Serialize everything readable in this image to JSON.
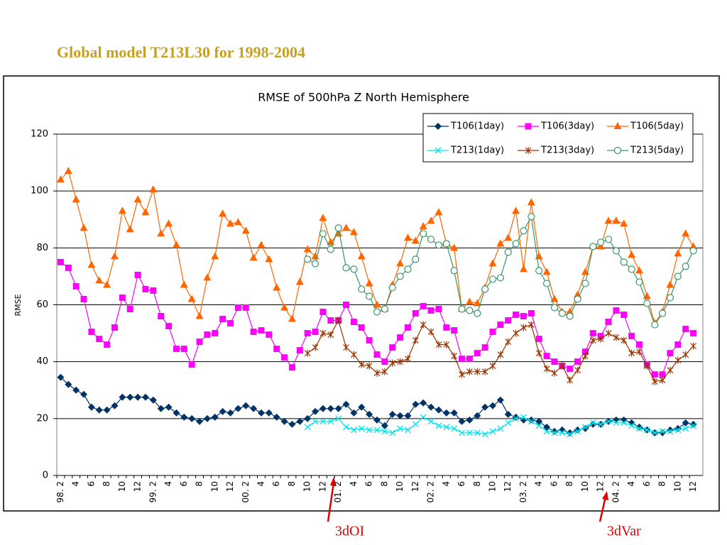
{
  "slide": {
    "title": "Global model T213L30 for 1998-2004"
  },
  "chart_data": {
    "type": "line",
    "title": "RMSE of 500hPa Z North Hemisphere",
    "y_label": "RMSE",
    "categories": [
      "98. 2",
      null,
      "4",
      null,
      "6",
      null,
      "8",
      null,
      "10",
      null,
      "12",
      null,
      "99. 2",
      null,
      "4",
      null,
      "6",
      null,
      "8",
      null,
      "10",
      null,
      "12",
      null,
      "00. 2",
      null,
      "4",
      null,
      "6",
      null,
      "8",
      null,
      "10",
      null,
      "12",
      null,
      "01. 2",
      null,
      "4",
      null,
      "6",
      null,
      "8",
      null,
      "10",
      null,
      "12",
      null,
      "02. 2",
      null,
      "4",
      null,
      "6",
      null,
      "8",
      null,
      "10",
      null,
      "12",
      null,
      "03. 2",
      null,
      "4",
      null,
      "6",
      null,
      "8",
      null,
      "10",
      null,
      "12",
      null,
      "04. 2",
      null,
      "4",
      null,
      "6",
      null,
      "8",
      null,
      "10",
      null,
      "12"
    ],
    "ylim": [
      0,
      120
    ],
    "yticks": [
      0,
      20,
      40,
      60,
      80,
      100,
      120
    ],
    "grid": true,
    "legend": "top-right",
    "series": [
      {
        "name": "T106(1day)",
        "color": "#003366",
        "marker": "diamond",
        "values": [
          34.5,
          32,
          30,
          28.5,
          24,
          23,
          23,
          24.5,
          27.5,
          27.5,
          27.5,
          27.5,
          26.5,
          23.5,
          24,
          22,
          20.5,
          20,
          19,
          20,
          20.5,
          22.5,
          22,
          23.5,
          24.5,
          23.5,
          22,
          22,
          20.5,
          19,
          18,
          19,
          20,
          22.5,
          23.5,
          23.5,
          23.5,
          25,
          22,
          24,
          21.5,
          19.5,
          17.5,
          21.5,
          21,
          21,
          25,
          25.5,
          24,
          23,
          22,
          22,
          19,
          19.5,
          21,
          24,
          24.5,
          26.5,
          21.5,
          20.5,
          19.5,
          19.5,
          19,
          17,
          15.5,
          16,
          15,
          16,
          16.5,
          18,
          18,
          19,
          19.5,
          19.5,
          18.5,
          17,
          16,
          15,
          15,
          16,
          16.5,
          18.5,
          18
        ]
      },
      {
        "name": "T106(3day)",
        "color": "#ff00ff",
        "marker": "square",
        "values": [
          75,
          73,
          66.5,
          62,
          50.5,
          48,
          46,
          52,
          62.5,
          58.5,
          70.5,
          65.5,
          65,
          56,
          52.5,
          44.5,
          44.5,
          39,
          47,
          49.5,
          50,
          55,
          53.5,
          59,
          59,
          50.5,
          51,
          49.5,
          44.5,
          41.5,
          38,
          44,
          50,
          50.5,
          57.5,
          54.5,
          54.5,
          60,
          54,
          52,
          47.5,
          42.5,
          40,
          45,
          48.5,
          52,
          57,
          59.5,
          58,
          58.5,
          52,
          51,
          41,
          41,
          43,
          45,
          50.5,
          53,
          54.5,
          56.5,
          56,
          57,
          48,
          42,
          40,
          38.5,
          37.5,
          40,
          43.5,
          50,
          49,
          54,
          58,
          56.5,
          49,
          46,
          39,
          35.5,
          35.5,
          43,
          46,
          51.5,
          50
        ]
      },
      {
        "name": "T106(5day)",
        "color": "#ff6600",
        "marker": "triangle",
        "values": [
          104,
          107,
          97,
          87,
          74,
          68.5,
          67,
          77,
          93,
          86.5,
          97,
          92.5,
          100.5,
          85,
          88.5,
          81,
          67,
          62,
          56,
          69.5,
          77,
          92,
          88.5,
          89,
          86,
          76.5,
          81,
          76,
          66,
          59,
          55,
          68,
          79.5,
          77,
          90.5,
          82,
          85,
          87,
          85.5,
          77,
          67.5,
          60,
          58.5,
          67,
          74.5,
          83.5,
          82.5,
          87.5,
          89.5,
          92.5,
          81.5,
          80,
          58.5,
          61,
          60.5,
          66,
          74.5,
          81.5,
          83.5,
          93,
          72.5,
          96,
          77,
          71.5,
          62,
          57.5,
          57.5,
          63.5,
          71.5,
          80.5,
          80.5,
          89.5,
          89.5,
          88.5,
          77.5,
          72,
          63,
          53.5,
          57.5,
          67,
          78,
          85,
          80.5
        ]
      },
      {
        "name": "T213(1day)",
        "color": "#00e5ee",
        "marker": "x",
        "values": [
          null,
          null,
          null,
          null,
          null,
          null,
          null,
          null,
          null,
          null,
          null,
          null,
          null,
          null,
          null,
          null,
          null,
          null,
          null,
          null,
          null,
          null,
          null,
          null,
          null,
          null,
          null,
          null,
          null,
          null,
          null,
          null,
          17,
          19,
          19,
          19,
          20,
          17,
          16,
          16.5,
          16,
          16,
          15.5,
          15,
          16.5,
          16,
          18,
          20.5,
          19,
          17.5,
          17,
          16.5,
          15,
          15,
          15,
          14.5,
          15.5,
          16.5,
          18.5,
          20,
          20.5,
          19,
          17.5,
          15.5,
          15,
          15,
          14.5,
          15.5,
          17,
          18.5,
          18,
          19,
          18.5,
          18.5,
          17.5,
          16.5,
          16,
          15,
          15.5,
          15.5,
          16,
          16.5,
          17.5
        ]
      },
      {
        "name": "T213(3day)",
        "color": "#993300",
        "marker": "star",
        "values": [
          null,
          null,
          null,
          null,
          null,
          null,
          null,
          null,
          null,
          null,
          null,
          null,
          null,
          null,
          null,
          null,
          null,
          null,
          null,
          null,
          null,
          null,
          null,
          null,
          null,
          null,
          null,
          null,
          null,
          null,
          null,
          null,
          43,
          45,
          50,
          49.5,
          54.5,
          45,
          42.5,
          39,
          38.5,
          36,
          36.5,
          39.5,
          40,
          41,
          47.5,
          53,
          50.5,
          46,
          46,
          42,
          35.5,
          36.5,
          36.5,
          36.5,
          38.5,
          42.5,
          47,
          50,
          52,
          53,
          43,
          37.5,
          36,
          38.5,
          33.5,
          37,
          42,
          47.5,
          48,
          50,
          48.5,
          47.5,
          43,
          43.5,
          38.5,
          33,
          33.5,
          37,
          40.5,
          42.5,
          45.5
        ]
      },
      {
        "name": "T213(5day)",
        "color": "#339966",
        "marker": "circle",
        "values": [
          null,
          null,
          null,
          null,
          null,
          null,
          null,
          null,
          null,
          null,
          null,
          null,
          null,
          null,
          null,
          null,
          null,
          null,
          null,
          null,
          null,
          null,
          null,
          null,
          null,
          null,
          null,
          null,
          null,
          null,
          null,
          null,
          76,
          74.5,
          85,
          79.5,
          87,
          73,
          72.5,
          65.5,
          63,
          57.5,
          58.5,
          66,
          70,
          72.5,
          76,
          85,
          83,
          81,
          81.5,
          72,
          58.5,
          58,
          57,
          65.5,
          69,
          69.5,
          78.5,
          81.5,
          86,
          91,
          72,
          67.5,
          59,
          57,
          56,
          62,
          67.5,
          80.5,
          82,
          83,
          79,
          75,
          72.5,
          68,
          60.5,
          53,
          57,
          62.5,
          70,
          73.5,
          79
        ]
      }
    ],
    "annotations": [
      {
        "text": "3dOI"
      },
      {
        "text": "3dVar"
      }
    ]
  }
}
